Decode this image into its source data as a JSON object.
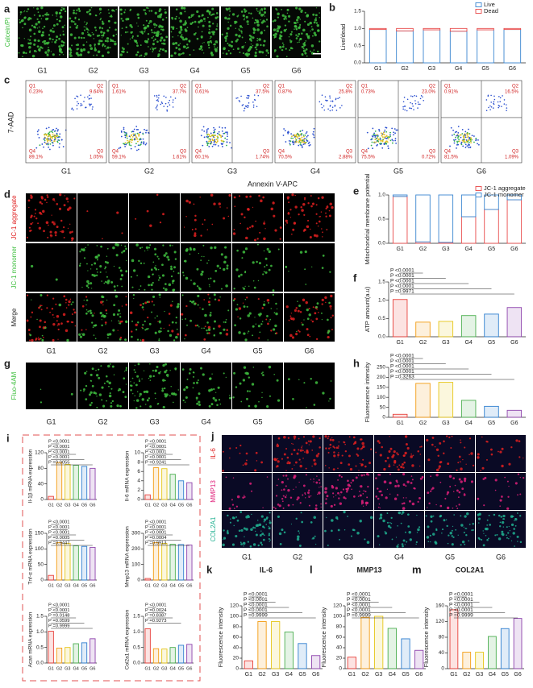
{
  "figure": {
    "image_panels": [
      {
        "panel": "a",
        "groups": [
          "G1",
          "G2",
          "G3",
          "G4",
          "G5",
          "G6"
        ],
        "rows": [
          {
            "label": "Calcein/PI",
            "color": "#3fbf3f"
          }
        ]
      },
      {
        "panel": "d",
        "groups": [
          "G1",
          "G2",
          "G3",
          "G4",
          "G5",
          "G6"
        ],
        "rows": [
          {
            "label": "JC-1 aggregate",
            "color": "#e02020"
          },
          {
            "label": "JC-1 monomer",
            "color": "#3fbf3f"
          },
          {
            "label": "Merge",
            "color": "#222222"
          }
        ]
      },
      {
        "panel": "g",
        "groups": [
          "G1",
          "G2",
          "G3",
          "G4",
          "G5",
          "G6"
        ],
        "rows": [
          {
            "label": "Fluo-4AM",
            "color": "#3fbf3f"
          }
        ]
      },
      {
        "panel": "j",
        "groups": [
          "G1",
          "G2",
          "G3",
          "G4",
          "G5",
          "G6"
        ],
        "rows": [
          {
            "label": "IL-6",
            "color": "#e02020"
          },
          {
            "label": "MMP13",
            "color": "#e0207a"
          },
          {
            "label": "COL2A1",
            "color": "#20b090"
          }
        ]
      }
    ],
    "flow": {
      "panel": "c",
      "y_label": "7-AAD",
      "x_label": "Annexin V-APC",
      "quadrants": [
        "Q1",
        "Q2",
        "Q3",
        "Q4"
      ],
      "plots": [
        {
          "group": "G1",
          "percent": [
            "0.23%",
            "9.64%",
            "1.05%",
            "89.1%"
          ]
        },
        {
          "group": "G2",
          "percent": [
            "1.61%",
            "37.7%",
            "1.61%",
            "59.1%"
          ]
        },
        {
          "group": "G3",
          "percent": [
            "0.61%",
            "37.5%",
            "1.74%",
            "60.1%"
          ]
        },
        {
          "group": "G4",
          "percent": [
            "0.87%",
            "25.8%",
            "2.88%",
            "70.5%"
          ]
        },
        {
          "group": "G5",
          "percent": [
            "0.73%",
            "23.0%",
            "0.72%",
            "75.5%"
          ]
        },
        {
          "group": "G6",
          "percent": [
            "0.91%",
            "16.5%",
            "1.09%",
            "81.5%"
          ]
        }
      ]
    },
    "i_panel": "i"
  },
  "chart_data": [
    {
      "type": "bar",
      "panel": "b",
      "y_label": "Live/dead",
      "categories": [
        "G1",
        "G2",
        "G3",
        "G4",
        "G5",
        "G6"
      ],
      "series": [
        {
          "name": "Live",
          "color": "#3a86d0",
          "values": [
            0.97,
            0.93,
            0.96,
            0.92,
            0.96,
            0.97
          ]
        },
        {
          "name": "Dead",
          "color": "#e84a4a",
          "values": [
            0.03,
            0.07,
            0.04,
            0.08,
            0.04,
            0.03
          ]
        }
      ],
      "ylim": [
        0,
        1.5
      ],
      "yticks": [
        {
          "value": 0,
          "label": "0.0"
        },
        0.5,
        {
          "value": 1,
          "label": "1.0"
        },
        1.5
      ]
    },
    {
      "type": "bar",
      "panel": "e",
      "y_label": "Mitochondrial membrane potential",
      "categories": [
        "G1",
        "G2",
        "G3",
        "G4",
        "G5",
        "G6"
      ],
      "series": [
        {
          "name": "JC-1 aggregate",
          "color": "#e84a4a",
          "values": [
            0.97,
            0.03,
            0.02,
            0.55,
            0.7,
            0.9
          ]
        },
        {
          "name": "JC-1 monomer",
          "color": "#3a86d0",
          "values": [
            0.03,
            0.97,
            0.98,
            0.45,
            0.3,
            0.1
          ]
        }
      ],
      "ylim": [
        0,
        1
      ],
      "yticks": [
        {
          "value": 0,
          "label": "0.0"
        },
        0.5,
        {
          "value": 1,
          "label": "1.0"
        }
      ]
    },
    {
      "type": "bar",
      "panel": "f",
      "y_label": "ATP amount(a.u)",
      "categories": [
        "G1",
        "G2",
        "G3",
        "G4",
        "G5",
        "G6"
      ],
      "values": [
        1.02,
        0.4,
        0.42,
        0.58,
        0.62,
        0.8
      ],
      "colors": [
        "#e8403a",
        "#f39c12",
        "#e6c619",
        "#4caf50",
        "#2f7fd0",
        "#8e44ad"
      ],
      "ylim": [
        0,
        1.5
      ],
      "yticks": [
        {
          "value": 0,
          "label": "0.0"
        },
        0.5,
        {
          "value": 1,
          "label": "1.0"
        },
        1.5
      ],
      "annotations": [
        "P <0.0001",
        "P <0.0001",
        "P <0.0001",
        "P <0.0001",
        "P =0.9971"
      ]
    },
    {
      "type": "bar",
      "panel": "h",
      "y_label": "Fluorescence intensity",
      "categories": [
        "G1",
        "G2",
        "G3",
        "G4",
        "G5",
        "G6"
      ],
      "values": [
        15,
        170,
        175,
        85,
        55,
        35
      ],
      "colors": [
        "#e8403a",
        "#f39c12",
        "#e6c619",
        "#4caf50",
        "#2f7fd0",
        "#8e44ad"
      ],
      "ylim": [
        0,
        250
      ],
      "yticks": [
        0,
        50,
        100,
        150,
        200,
        250
      ],
      "annotations": [
        "P <0.0001",
        "P <0.0001",
        "P <0.0001",
        "P <0.0001",
        "P =0.3263"
      ]
    },
    {
      "type": "bar",
      "y_label": "Il-1β mRNA expression",
      "categories": [
        "G1",
        "G2",
        "G3",
        "G4",
        "G5",
        "G6"
      ],
      "values": [
        8,
        95,
        90,
        88,
        85,
        80
      ],
      "colors": [
        "#e8403a",
        "#f39c12",
        "#e6c619",
        "#4caf50",
        "#2f7fd0",
        "#8e44ad"
      ],
      "ylim": [
        0,
        120
      ],
      "yticks": [
        0,
        40,
        80,
        120
      ],
      "annotations": [
        "P <0.0001",
        "P <0.0001",
        "P <0.0001",
        "P <0.0001",
        "P =0.0055"
      ]
    },
    {
      "type": "bar",
      "y_label": "Il-6 mRNA expression",
      "categories": [
        "G1",
        "G2",
        "G3",
        "G4",
        "G5",
        "G6"
      ],
      "values": [
        1,
        6.8,
        6.6,
        5.4,
        4,
        3.6
      ],
      "colors": [
        "#e8403a",
        "#f39c12",
        "#e6c619",
        "#4caf50",
        "#2f7fd0",
        "#8e44ad"
      ],
      "ylim": [
        0,
        10
      ],
      "yticks": [
        0,
        2,
        4,
        6,
        8,
        10
      ],
      "annotations": [
        "P <0.0001",
        "P <0.0001",
        "P <0.0001",
        "P <0.0001",
        "P =0.9241"
      ]
    },
    {
      "type": "bar",
      "y_label": "Tnf-α mRNA expression",
      "categories": [
        "G1",
        "G2",
        "G3",
        "G4",
        "G5",
        "G6"
      ],
      "values": [
        15,
        120,
        118,
        110,
        108,
        105
      ],
      "colors": [
        "#e8403a",
        "#f39c12",
        "#e6c619",
        "#4caf50",
        "#2f7fd0",
        "#8e44ad"
      ],
      "ylim": [
        0,
        150
      ],
      "yticks": [
        0,
        50,
        100,
        150
      ],
      "annotations": [
        "P <0.0001",
        "P <0.0001",
        "P <0.0001",
        "P =0.0005",
        "P =0.9447"
      ]
    },
    {
      "type": "bar",
      "y_label": "Mmp13 mRNA expression",
      "categories": [
        "G1",
        "G2",
        "G3",
        "G4",
        "G5",
        "G6"
      ],
      "values": [
        10,
        240,
        235,
        230,
        228,
        225
      ],
      "colors": [
        "#e8403a",
        "#f39c12",
        "#e6c619",
        "#4caf50",
        "#2f7fd0",
        "#8e44ad"
      ],
      "ylim": [
        0,
        300
      ],
      "yticks": [
        0,
        100,
        200,
        300
      ],
      "annotations": [
        "P <0.0001",
        "P <0.0001",
        "P <0.0001",
        "P =0.0004",
        "P =0.9913"
      ]
    },
    {
      "type": "bar",
      "y_label": "Acan mRNA expression",
      "categories": [
        "G1",
        "G2",
        "G3",
        "G4",
        "G5",
        "G6"
      ],
      "values": [
        1.02,
        0.48,
        0.5,
        0.62,
        0.65,
        0.78
      ],
      "colors": [
        "#e8403a",
        "#f39c12",
        "#e6c619",
        "#4caf50",
        "#2f7fd0",
        "#8e44ad"
      ],
      "ylim": [
        0,
        1.5
      ],
      "yticks": [
        {
          "value": 0,
          "label": "0.0"
        },
        0.5,
        {
          "value": 1,
          "label": "1.0"
        },
        1.5
      ],
      "annotations": [
        "P <0.0001",
        "P <0.0001",
        "P =0.0148",
        "P =0.0599",
        "P =0.9999"
      ]
    },
    {
      "type": "bar",
      "y_label": "Col2a1 mRNA expression",
      "categories": [
        "G1",
        "G2",
        "G3",
        "G4",
        "G5",
        "G6"
      ],
      "values": [
        1.1,
        0.46,
        0.45,
        0.5,
        0.57,
        0.6
      ],
      "colors": [
        "#e8403a",
        "#f39c12",
        "#e6c619",
        "#4caf50",
        "#2f7fd0",
        "#8e44ad"
      ],
      "ylim": [
        0,
        1.5
      ],
      "yticks": [
        {
          "value": 0,
          "label": "0.0"
        },
        0.5,
        {
          "value": 1,
          "label": "1.0"
        },
        1.5
      ],
      "annotations": [
        "P <0.0001",
        "P =0.0024",
        "P =0.8387",
        "P =0.9273"
      ]
    },
    {
      "type": "bar",
      "panel": "k",
      "title": "IL-6",
      "y_label": "Fluorescence intensity",
      "categories": [
        "G1",
        "G2",
        "G3",
        "G4",
        "G5",
        "G6"
      ],
      "values": [
        15,
        90,
        90,
        70,
        48,
        25
      ],
      "colors": [
        "#e8403a",
        "#f39c12",
        "#e6c619",
        "#4caf50",
        "#2f7fd0",
        "#8e44ad"
      ],
      "ylim": [
        0,
        120
      ],
      "yticks": [
        0,
        20,
        40,
        60,
        80,
        100,
        120
      ],
      "annotations": [
        "P <0.0001",
        "P <0.0001",
        "P <0.0001",
        "P <0.0001",
        "P =0.9999"
      ]
    },
    {
      "type": "bar",
      "panel": "l",
      "title": "MMP13",
      "y_label": "Fluorescence intensity",
      "categories": [
        "G1",
        "G2",
        "G3",
        "G4",
        "G5",
        "G6"
      ],
      "values": [
        22,
        98,
        100,
        77,
        57,
        35
      ],
      "colors": [
        "#e8403a",
        "#f39c12",
        "#e6c619",
        "#4caf50",
        "#2f7fd0",
        "#8e44ad"
      ],
      "ylim": [
        0,
        120
      ],
      "yticks": [
        0,
        20,
        40,
        60,
        80,
        100,
        120
      ],
      "annotations": [
        "P <0.0001",
        "P <0.0001",
        "P <0.0001",
        "P <0.0001",
        "P =0.9999"
      ]
    },
    {
      "type": "bar",
      "panel": "m",
      "title": "COL2A1",
      "y_label": "Fluorescence intensity",
      "categories": [
        "G1",
        "G2",
        "G3",
        "G4",
        "G5",
        "G6"
      ],
      "values": [
        150,
        42,
        42,
        82,
        102,
        128
      ],
      "colors": [
        "#e8403a",
        "#f39c12",
        "#e6c619",
        "#4caf50",
        "#2f7fd0",
        "#8e44ad"
      ],
      "ylim": [
        0,
        160
      ],
      "yticks": [
        0,
        40,
        80,
        120,
        160
      ],
      "annotations": [
        "P <0.0001",
        "P <0.0001",
        "P <0.0001",
        "P <0.0001",
        "P =0.9999"
      ]
    }
  ]
}
